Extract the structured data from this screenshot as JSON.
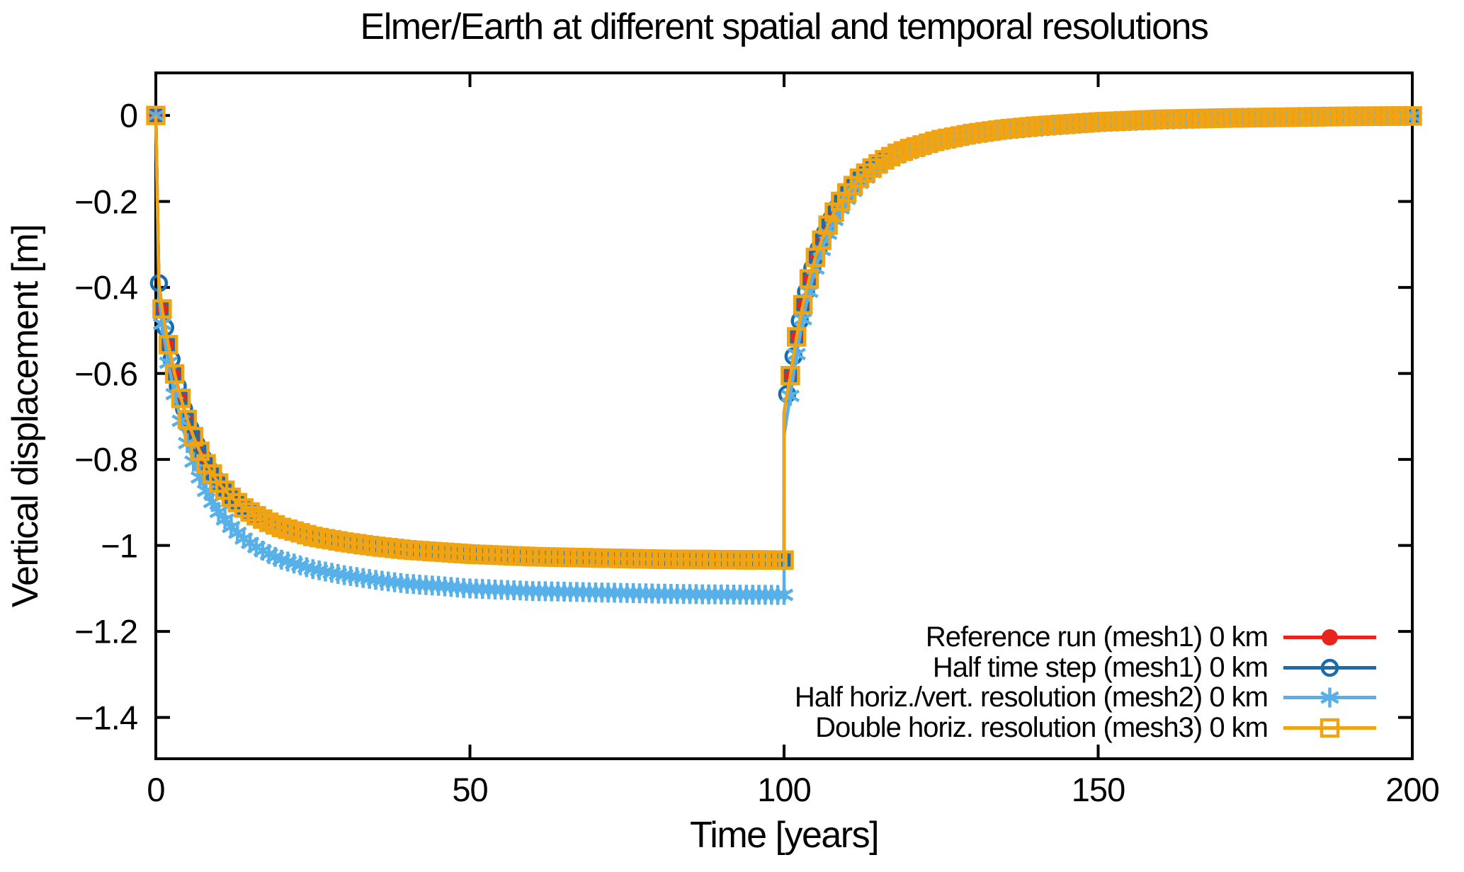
{
  "chart_data": {
    "type": "line",
    "title": "Elmer/Earth at different spatial and temporal resolutions",
    "xlabel": "Time [years]",
    "ylabel": "Vertical displacement [m]",
    "x_range": [
      0,
      200
    ],
    "y_range": [
      -1.496,
      0.099
    ],
    "grid": false,
    "background_color": "#ffffff",
    "axis_color": "#000000",
    "legend_position": "inside bottom-right",
    "x_ticks": {
      "values": [
        0,
        50,
        100,
        150,
        200
      ],
      "labels": [
        "0",
        "50",
        "100",
        "150",
        "200"
      ]
    },
    "y_ticks": {
      "values": [
        0,
        -0.2,
        -0.4,
        -0.6,
        -0.8,
        -1,
        -1.2,
        -1.4
      ],
      "labels": [
        "0",
        "−0.2",
        "−0.4",
        "−0.6",
        "−0.8",
        "−1",
        "−1.2",
        "−1.4"
      ]
    },
    "series": [
      {
        "name": "Reference run (mesh1) 0 km",
        "color": "#e6251c",
        "marker": "filled-circle",
        "time_step": 1,
        "points": [
          [
            0,
            0
          ],
          [
            0.5,
            -0.39
          ],
          [
            1,
            -0.45
          ],
          [
            1.5,
            -0.493
          ],
          [
            2,
            -0.533
          ],
          [
            3,
            -0.601
          ],
          [
            4,
            -0.658
          ],
          [
            5,
            -0.707
          ],
          [
            6,
            -0.747
          ],
          [
            7,
            -0.781
          ],
          [
            8,
            -0.81
          ],
          [
            9,
            -0.834
          ],
          [
            10,
            -0.855
          ],
          [
            12,
            -0.888
          ],
          [
            14,
            -0.913
          ],
          [
            16,
            -0.931
          ],
          [
            18,
            -0.946
          ],
          [
            20,
            -0.958
          ],
          [
            25,
            -0.979
          ],
          [
            30,
            -0.992
          ],
          [
            35,
            -1.002
          ],
          [
            40,
            -1.01
          ],
          [
            45,
            -1.015
          ],
          [
            50,
            -1.02
          ],
          [
            60,
            -1.026
          ],
          [
            70,
            -1.029
          ],
          [
            80,
            -1.032
          ],
          [
            90,
            -1.033
          ],
          [
            100,
            -1.034
          ],
          [
            100.01,
            -0.69
          ],
          [
            100.5,
            -0.648
          ],
          [
            101,
            -0.605
          ],
          [
            102,
            -0.515
          ],
          [
            103,
            -0.44
          ],
          [
            104,
            -0.38
          ],
          [
            105,
            -0.33
          ],
          [
            106,
            -0.29
          ],
          [
            107,
            -0.255
          ],
          [
            108,
            -0.225
          ],
          [
            109,
            -0.2
          ],
          [
            110,
            -0.18
          ],
          [
            112,
            -0.146
          ],
          [
            114,
            -0.122
          ],
          [
            116,
            -0.103
          ],
          [
            118,
            -0.088
          ],
          [
            120,
            -0.077
          ],
          [
            125,
            -0.056
          ],
          [
            130,
            -0.042
          ],
          [
            135,
            -0.032
          ],
          [
            140,
            -0.025
          ],
          [
            150,
            -0.015
          ],
          [
            160,
            -0.009
          ],
          [
            170,
            -0.006
          ],
          [
            180,
            -0.004
          ],
          [
            190,
            -0.002
          ],
          [
            200,
            -0.001
          ]
        ]
      },
      {
        "name": "Half time step (mesh1) 0 km",
        "color": "#1a6cab",
        "marker": "open-circle",
        "time_step": 0.5,
        "points": [
          [
            0,
            0
          ],
          [
            0.5,
            -0.39
          ],
          [
            1,
            -0.45
          ],
          [
            1.5,
            -0.493
          ],
          [
            2,
            -0.533
          ],
          [
            3,
            -0.601
          ],
          [
            4,
            -0.658
          ],
          [
            5,
            -0.707
          ],
          [
            6,
            -0.747
          ],
          [
            7,
            -0.781
          ],
          [
            8,
            -0.81
          ],
          [
            9,
            -0.834
          ],
          [
            10,
            -0.855
          ],
          [
            12,
            -0.888
          ],
          [
            14,
            -0.913
          ],
          [
            16,
            -0.931
          ],
          [
            18,
            -0.946
          ],
          [
            20,
            -0.958
          ],
          [
            25,
            -0.979
          ],
          [
            30,
            -0.992
          ],
          [
            35,
            -1.002
          ],
          [
            40,
            -1.01
          ],
          [
            45,
            -1.015
          ],
          [
            50,
            -1.02
          ],
          [
            60,
            -1.026
          ],
          [
            70,
            -1.029
          ],
          [
            80,
            -1.032
          ],
          [
            90,
            -1.033
          ],
          [
            100,
            -1.034
          ],
          [
            100.01,
            -0.69
          ],
          [
            100.5,
            -0.648
          ],
          [
            101,
            -0.605
          ],
          [
            102,
            -0.515
          ],
          [
            103,
            -0.44
          ],
          [
            104,
            -0.38
          ],
          [
            105,
            -0.33
          ],
          [
            106,
            -0.29
          ],
          [
            107,
            -0.255
          ],
          [
            108,
            -0.225
          ],
          [
            109,
            -0.2
          ],
          [
            110,
            -0.18
          ],
          [
            112,
            -0.146
          ],
          [
            114,
            -0.122
          ],
          [
            116,
            -0.103
          ],
          [
            118,
            -0.088
          ],
          [
            120,
            -0.077
          ],
          [
            125,
            -0.056
          ],
          [
            130,
            -0.042
          ],
          [
            135,
            -0.032
          ],
          [
            140,
            -0.025
          ],
          [
            150,
            -0.015
          ],
          [
            160,
            -0.009
          ],
          [
            170,
            -0.006
          ],
          [
            180,
            -0.004
          ],
          [
            190,
            -0.002
          ],
          [
            200,
            -0.001
          ]
        ]
      },
      {
        "name": "Half horiz./vert. resolution (mesh2) 0 km",
        "color": "#57b0e8",
        "marker": "asterisk",
        "time_step": 1,
        "points": [
          [
            0,
            0
          ],
          [
            0.5,
            -0.42
          ],
          [
            1,
            -0.485
          ],
          [
            1.5,
            -0.532
          ],
          [
            2,
            -0.575
          ],
          [
            3,
            -0.648
          ],
          [
            4,
            -0.71
          ],
          [
            5,
            -0.762
          ],
          [
            6,
            -0.805
          ],
          [
            7,
            -0.842
          ],
          [
            8,
            -0.873
          ],
          [
            9,
            -0.899
          ],
          [
            10,
            -0.922
          ],
          [
            12,
            -0.957
          ],
          [
            14,
            -0.984
          ],
          [
            16,
            -1.004
          ],
          [
            18,
            -1.02
          ],
          [
            20,
            -1.033
          ],
          [
            25,
            -1.055
          ],
          [
            30,
            -1.069
          ],
          [
            35,
            -1.08
          ],
          [
            40,
            -1.089
          ],
          [
            45,
            -1.094
          ],
          [
            50,
            -1.1
          ],
          [
            60,
            -1.106
          ],
          [
            70,
            -1.109
          ],
          [
            80,
            -1.112
          ],
          [
            90,
            -1.114
          ],
          [
            100,
            -1.115
          ],
          [
            100.01,
            -0.744
          ],
          [
            100.5,
            -0.698
          ],
          [
            101,
            -0.652
          ],
          [
            102,
            -0.555
          ],
          [
            103,
            -0.474
          ],
          [
            104,
            -0.41
          ],
          [
            105,
            -0.356
          ],
          [
            106,
            -0.313
          ],
          [
            107,
            -0.275
          ],
          [
            108,
            -0.243
          ],
          [
            109,
            -0.216
          ],
          [
            110,
            -0.194
          ],
          [
            112,
            -0.157
          ],
          [
            114,
            -0.132
          ],
          [
            116,
            -0.111
          ],
          [
            118,
            -0.095
          ],
          [
            120,
            -0.083
          ],
          [
            125,
            -0.06
          ],
          [
            130,
            -0.045
          ],
          [
            135,
            -0.034
          ],
          [
            140,
            -0.027
          ],
          [
            150,
            -0.016
          ],
          [
            160,
            -0.01
          ],
          [
            170,
            -0.006
          ],
          [
            180,
            -0.004
          ],
          [
            190,
            -0.002
          ],
          [
            200,
            -0.001
          ]
        ]
      },
      {
        "name": "Double horiz. resolution (mesh3) 0 km",
        "color": "#f0a413",
        "marker": "open-square",
        "time_step": 1,
        "points": [
          [
            0,
            0
          ],
          [
            0.5,
            -0.39
          ],
          [
            1,
            -0.45
          ],
          [
            1.5,
            -0.493
          ],
          [
            2,
            -0.533
          ],
          [
            3,
            -0.601
          ],
          [
            4,
            -0.658
          ],
          [
            5,
            -0.707
          ],
          [
            6,
            -0.747
          ],
          [
            7,
            -0.781
          ],
          [
            8,
            -0.81
          ],
          [
            9,
            -0.834
          ],
          [
            10,
            -0.855
          ],
          [
            12,
            -0.888
          ],
          [
            14,
            -0.913
          ],
          [
            16,
            -0.931
          ],
          [
            18,
            -0.946
          ],
          [
            20,
            -0.958
          ],
          [
            25,
            -0.979
          ],
          [
            30,
            -0.992
          ],
          [
            35,
            -1.002
          ],
          [
            40,
            -1.01
          ],
          [
            45,
            -1.015
          ],
          [
            50,
            -1.02
          ],
          [
            60,
            -1.026
          ],
          [
            70,
            -1.029
          ],
          [
            80,
            -1.032
          ],
          [
            90,
            -1.033
          ],
          [
            100,
            -1.034
          ],
          [
            100.01,
            -0.69
          ],
          [
            100.5,
            -0.648
          ],
          [
            101,
            -0.605
          ],
          [
            102,
            -0.515
          ],
          [
            103,
            -0.44
          ],
          [
            104,
            -0.38
          ],
          [
            105,
            -0.33
          ],
          [
            106,
            -0.29
          ],
          [
            107,
            -0.255
          ],
          [
            108,
            -0.225
          ],
          [
            109,
            -0.2
          ],
          [
            110,
            -0.18
          ],
          [
            112,
            -0.146
          ],
          [
            114,
            -0.122
          ],
          [
            116,
            -0.103
          ],
          [
            118,
            -0.088
          ],
          [
            120,
            -0.077
          ],
          [
            125,
            -0.056
          ],
          [
            130,
            -0.042
          ],
          [
            135,
            -0.032
          ],
          [
            140,
            -0.025
          ],
          [
            150,
            -0.015
          ],
          [
            160,
            -0.009
          ],
          [
            170,
            -0.006
          ],
          [
            180,
            -0.004
          ],
          [
            190,
            -0.002
          ],
          [
            200,
            -0.001
          ]
        ]
      }
    ]
  }
}
